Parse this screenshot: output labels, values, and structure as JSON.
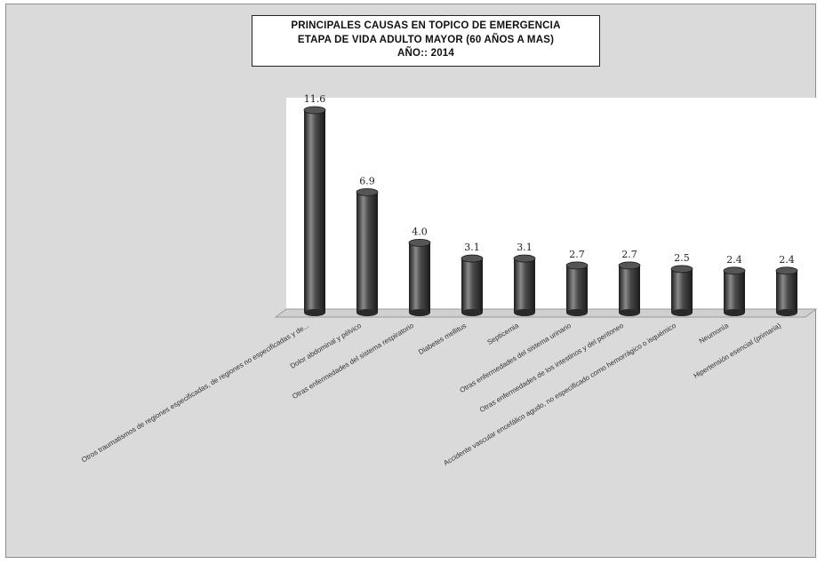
{
  "chart_data": {
    "type": "bar",
    "title_lines": [
      "PRINCIPALES CAUSAS EN TOPICO DE EMERGENCIA",
      "ETAPA DE VIDA ADULTO MAYOR (60 AÑOS A MAS)",
      "AÑO:: 2014"
    ],
    "categories": [
      "Otros traumatismos de regiones especificadas, de regiones no especificadas y de...",
      "Dolor abdominal y pélvico",
      "Otras enfermedades del sistema respiratorio",
      "Diabetes mellitus",
      "Septicemia",
      "Otras enfermedades del sistema urinario",
      "Otras enfermedades de los intestinos y del peritoneo",
      "Accidente vascular encefálico agudo, no especificado como hemorrágico o isquémico",
      "Neumonía",
      "Hipertensión esencial (primaria)"
    ],
    "values": [
      11.6,
      6.9,
      4.0,
      3.1,
      3.1,
      2.7,
      2.7,
      2.5,
      2.4,
      2.4
    ],
    "data_labels": [
      "11.6",
      "6.9",
      "4.0",
      "3.1",
      "3.1",
      "2.7",
      "2.7",
      "2.5",
      "2.4",
      "2.4"
    ],
    "xlabel": "",
    "ylabel": "",
    "ylim": [
      0,
      11.6
    ],
    "grid": false,
    "legend": "none",
    "colors": {
      "bar": "#3a3a3a",
      "bar_highlight": "#8a8a8a",
      "plot_background": "#ffffff",
      "chart_background": "#dadada",
      "floor": "#d0d0d0"
    }
  }
}
